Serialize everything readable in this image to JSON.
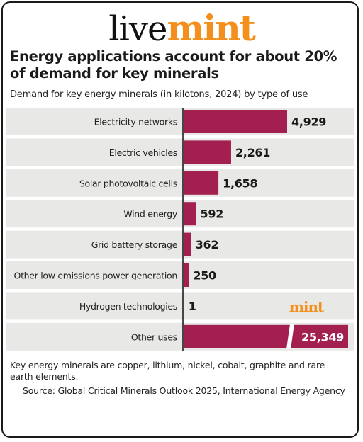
{
  "brand": {
    "live": "live",
    "mint": "mint"
  },
  "watermark": "mint",
  "colors": {
    "bar": "#a31f50",
    "row_bg": "#e8e8e6",
    "accent": "#f3901d",
    "text": "#1a1a1a"
  },
  "chart_data": {
    "type": "bar",
    "orientation": "horizontal",
    "title": "Energy applications account for about 20% of demand for key minerals",
    "subtitle": "Demand for key energy minerals (in kilotons, 2024) by type of use",
    "categories": [
      "Electricity networks",
      "Electric vehicles",
      "Solar photovoltaic cells",
      "Wind energy",
      "Grid battery storage",
      "Other low emissions power generation",
      "Hydrogen technologies",
      "Other uses"
    ],
    "values": [
      4929,
      2261,
      1658,
      592,
      362,
      250,
      1,
      25349
    ],
    "labels": [
      "4,929",
      "2,261",
      "1,658",
      "592",
      "362",
      "250",
      "1",
      "25,349"
    ],
    "axis_break_on_last_bar": true,
    "grid": false
  },
  "notes": {
    "footnote": "Key energy minerals are copper, lithium, nickel, cobalt, graphite and rare earth elements.",
    "source": "Source: Global Critical Minerals Outlook 2025, International Energy Agency"
  }
}
